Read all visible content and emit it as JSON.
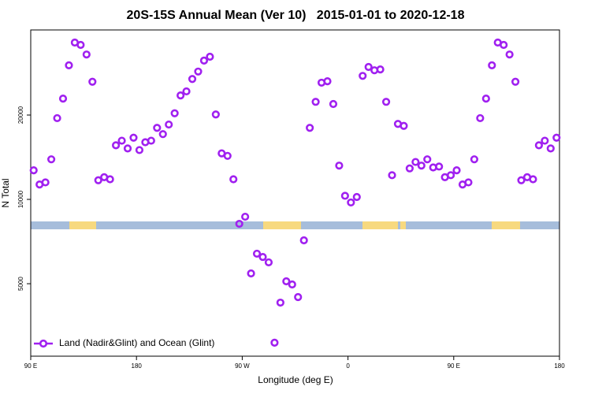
{
  "chart_data": {
    "type": "scatter",
    "title": "20S-15S Annual Mean (Ver 10)   2015-01-01 to 2020-12-18",
    "xlabel": "Longitude (deg E)",
    "ylabel": "N Total",
    "xlim": [
      90,
      540
    ],
    "xticks": [
      {
        "value": 90,
        "label": "90 E"
      },
      180,
      {
        "value": 270,
        "label": "90 W"
      },
      {
        "value": 360,
        "label": "0"
      },
      {
        "value": 450,
        "label": "90 E"
      },
      {
        "value": 540,
        "label": "180"
      }
    ],
    "ylim": [
      2756,
      40260
    ],
    "yticks": [
      5000,
      10000,
      20000
    ],
    "ylog": true,
    "legend": "bottom-left",
    "series": [
      {
        "name": "Land (Nadir&Glint) and Ocean (Glint)",
        "color": "#a020f0",
        "x": [
          92.5,
          97.5,
          102.5,
          107.5,
          112.5,
          117.5,
          122.5,
          127.5,
          132.5,
          137.5,
          142.5,
          147.5,
          152.5,
          157.5,
          162.5,
          167.5,
          172.5,
          177.5,
          182.5,
          187.5,
          192.5,
          197.5,
          202.5,
          207.5,
          212.5,
          217.5,
          222.5,
          227.5,
          232.5,
          237.5,
          242.5,
          247.5,
          252.5,
          257.5,
          262.5,
          267.5,
          272.5,
          277.5,
          282.5,
          287.5,
          292.5,
          297.5,
          302.5,
          307.5,
          312.5,
          317.5,
          322.5,
          327.5,
          332.5,
          337.5,
          342.5,
          347.5,
          352.5,
          357.5,
          362.5,
          367.5,
          372.5,
          377.5,
          382.5,
          387.5,
          392.5,
          397.5,
          402.5,
          407.5,
          412.5,
          417.5,
          422.5,
          427.5,
          432.5,
          437.5,
          442.5,
          447.5,
          452.5,
          457.5,
          462.5,
          467.5,
          472.5,
          477.5,
          482.5,
          487.5,
          492.5,
          497.5,
          502.5,
          507.5,
          512.5,
          517.5,
          522.5,
          527.5,
          532.5,
          537.5
        ],
        "values": [
          12700,
          11300,
          11500,
          13900,
          19500,
          22900,
          30100,
          36300,
          35600,
          32900,
          26300,
          11700,
          12000,
          11800,
          15600,
          16200,
          15200,
          16600,
          15000,
          16000,
          16200,
          18000,
          17100,
          18500,
          20300,
          23500,
          24300,
          26900,
          28600,
          31300,
          32300,
          20100,
          14600,
          14300,
          11800,
          8180,
          8670,
          5440,
          6400,
          6230,
          5960,
          3080,
          4280,
          5100,
          4970,
          4480,
          7140,
          18000,
          22300,
          26100,
          26400,
          21900,
          13200,
          10300,
          9750,
          10200,
          27600,
          29700,
          28900,
          29100,
          22300,
          12200,
          18600,
          18300,
          12900,
          13600,
          13200,
          13900,
          13000,
          13100,
          12000,
          12200,
          12700,
          11300,
          11500,
          13900,
          19500,
          22900,
          30100,
          36300,
          35600,
          32900,
          26300,
          11700,
          12000,
          11800,
          15600,
          16200,
          15200,
          16600
        ]
      }
    ]
  }
}
